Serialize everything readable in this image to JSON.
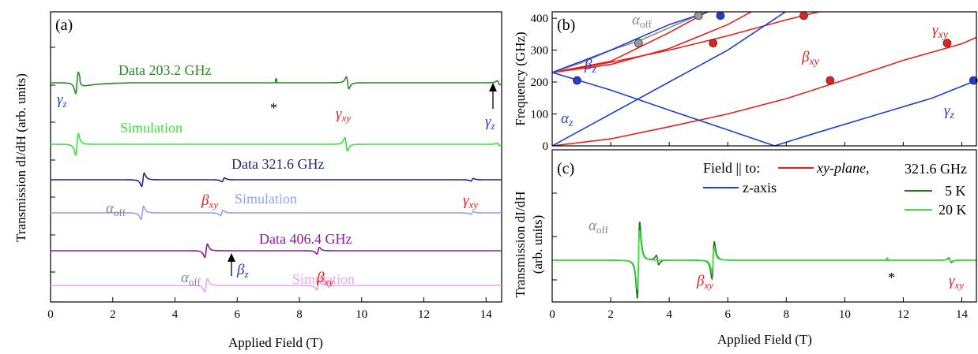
{
  "chart_data": [
    {
      "type": "line",
      "panel": "(a)",
      "xlabel": "Applied Field (T)",
      "ylabel": "Transmission dI/dH (arb. units)",
      "xlim": [
        0,
        14.5
      ],
      "xticks": [
        0,
        2,
        4,
        6,
        8,
        10,
        12,
        14
      ],
      "series": [
        {
          "name": "Data 203.2 GHz",
          "color": "#2a8a2a",
          "offset": 0,
          "features": [
            {
              "x": 0.85,
              "amp": 16,
              "kind": "up"
            },
            {
              "x": 7.25,
              "amp": 5,
              "kind": "spike"
            },
            {
              "x": 9.55,
              "amp": 9,
              "kind": "down"
            },
            {
              "x": 14.4,
              "amp": 3,
              "kind": "down"
            }
          ]
        },
        {
          "name": "Simulation",
          "color": "#3de03d",
          "offset": 1,
          "features": [
            {
              "x": 0.85,
              "amp": 16,
              "kind": "up"
            },
            {
              "x": 9.5,
              "amp": 10,
              "kind": "down"
            },
            {
              "x": 14.4,
              "amp": 2,
              "kind": "down"
            }
          ]
        },
        {
          "name": "Data 321.6 GHz",
          "color": "#1f2a7a",
          "offset": 2,
          "features": [
            {
              "x": 2.97,
              "amp": 10,
              "kind": "up"
            },
            {
              "x": 5.55,
              "amp": 3,
              "kind": "up"
            },
            {
              "x": 13.55,
              "amp": 2,
              "kind": "up"
            }
          ]
        },
        {
          "name": "Simulation",
          "color": "#8fa3ee",
          "offset": 3,
          "features": [
            {
              "x": 2.95,
              "amp": 10,
              "kind": "up"
            },
            {
              "x": 5.5,
              "amp": 4,
              "kind": "up"
            },
            {
              "x": 13.55,
              "amp": 2,
              "kind": "up"
            }
          ]
        },
        {
          "name": "Data 406.4 GHz",
          "color": "#8a1a9a",
          "offset": 4,
          "features": [
            {
              "x": 5.0,
              "amp": 10,
              "kind": "up"
            },
            {
              "x": 8.6,
              "amp": 5,
              "kind": "up"
            }
          ]
        },
        {
          "name": "Simulation",
          "color": "#e8a6ee",
          "offset": 5,
          "features": [
            {
              "x": 5.0,
              "amp": 10,
              "kind": "up"
            },
            {
              "x": 8.6,
              "amp": 7,
              "kind": "up"
            }
          ]
        }
      ],
      "annotations": [
        {
          "text": "*"
        },
        {
          "sym": "γ",
          "sub": "z"
        },
        {
          "sym": "γ",
          "sub": "xy"
        },
        {
          "sym": "γ",
          "sub": "z"
        },
        {
          "sym": "α",
          "sub": "off"
        },
        {
          "sym": "β",
          "sub": "xy"
        },
        {
          "sym": "γ",
          "sub": "xy"
        },
        {
          "sym": "α",
          "sub": "off"
        },
        {
          "sym": "β",
          "sub": "z"
        },
        {
          "sym": "β",
          "sub": "xy"
        }
      ]
    },
    {
      "type": "line",
      "panel": "(b)",
      "xlabel": "",
      "ylabel": "Frequency (GHz)",
      "xlim": [
        0,
        14.5
      ],
      "ylim": [
        0,
        420
      ],
      "yticks": [
        0,
        100,
        200,
        300,
        400
      ],
      "legend": {
        "title": "Field || to:",
        "entries": [
          {
            "label": "xy-plane,",
            "color": "#e8201c"
          },
          {
            "label": "z-axis",
            "color": "#1f3fd0"
          }
        ]
      },
      "series": [
        {
          "branch": "red-main",
          "color": "#e8201c",
          "x": [
            0,
            2,
            4,
            6,
            8,
            10,
            12,
            14,
            14.5
          ],
          "y": [
            0,
            22,
            60,
            100,
            148,
            207,
            268,
            320,
            340
          ]
        },
        {
          "branch": "red-upper-1",
          "color": "#e8201c",
          "x": [
            0,
            2,
            4,
            6,
            8,
            10
          ],
          "y": [
            230,
            262,
            300,
            345,
            395,
            440
          ]
        },
        {
          "branch": "red-upper-2",
          "color": "#e8201c",
          "x": [
            0,
            2,
            4,
            6,
            7
          ],
          "y": [
            230,
            255,
            305,
            380,
            430
          ]
        },
        {
          "branch": "red-upper-3",
          "color": "#e8201c",
          "x": [
            0,
            2,
            4,
            5.5
          ],
          "y": [
            230,
            265,
            355,
            430
          ]
        },
        {
          "branch": "gray-alpha-off",
          "color": "#888888",
          "x": [
            0,
            1,
            2,
            3,
            4,
            5,
            6
          ],
          "y": [
            230,
            260,
            300,
            330,
            370,
            410,
            440
          ]
        },
        {
          "branch": "blue-up-1",
          "color": "#1f3fd0",
          "x": [
            0,
            2,
            4,
            6
          ],
          "y": [
            230,
            300,
            380,
            440
          ]
        },
        {
          "branch": "blue-up-2",
          "color": "#1f3fd0",
          "x": [
            0,
            2,
            4,
            6,
            8.3
          ],
          "y": [
            0,
            100,
            200,
            300,
            440
          ]
        },
        {
          "branch": "blue-down",
          "color": "#1f3fd0",
          "x": [
            0,
            2,
            4,
            6,
            7.6
          ],
          "y": [
            230,
            175,
            112,
            50,
            0
          ]
        },
        {
          "branch": "blue-V-right",
          "color": "#1f3fd0",
          "x": [
            7.6,
            9,
            11,
            13,
            14.5
          ],
          "y": [
            0,
            40,
            95,
            150,
            205
          ]
        }
      ],
      "points": [
        {
          "x": 0.85,
          "y": 205,
          "color": "#1f3fd0"
        },
        {
          "x": 5.75,
          "y": 408,
          "color": "#1f3fd0"
        },
        {
          "x": 14.4,
          "y": 205,
          "color": "#1f3fd0"
        },
        {
          "x": 2.95,
          "y": 322,
          "color": "#999999"
        },
        {
          "x": 5.0,
          "y": 408,
          "color": "#999999"
        },
        {
          "x": 5.5,
          "y": 322,
          "color": "#e8201c"
        },
        {
          "x": 8.6,
          "y": 408,
          "color": "#e8201c"
        },
        {
          "x": 9.5,
          "y": 205,
          "color": "#e8201c"
        },
        {
          "x": 13.5,
          "y": 322,
          "color": "#e8201c"
        }
      ],
      "annotations": [
        {
          "sym": "α",
          "sub": "off"
        },
        {
          "sym": "β",
          "sub": "z"
        },
        {
          "sym": "β",
          "sub": "xy"
        },
        {
          "sym": "γ",
          "sub": "xy"
        },
        {
          "sym": "α",
          "sub": "z"
        },
        {
          "sym": "γ",
          "sub": "z"
        }
      ]
    },
    {
      "type": "line",
      "panel": "(c)",
      "xlabel": "Applied Field (T)",
      "ylabel_line1": "Transmission dI/dH",
      "ylabel_line2": "(arb. units)",
      "xlim": [
        0,
        14.5
      ],
      "xticks": [
        0,
        2,
        4,
        6,
        8,
        10,
        12,
        14
      ],
      "legend": {
        "title": "321.6 GHz",
        "entries": [
          {
            "label": "5 K",
            "color": "#1f7a1f"
          },
          {
            "label": "20 K",
            "color": "#3de03d"
          }
        ]
      },
      "series": [
        {
          "name": "5 K",
          "color": "#1f7a1f",
          "features": [
            {
              "x": 2.95,
              "amp": 105,
              "kind": "up"
            },
            {
              "x": 3.6,
              "amp": 10,
              "kind": "down"
            },
            {
              "x": 5.5,
              "amp": 40,
              "kind": "up"
            },
            {
              "x": 13.6,
              "amp": 5,
              "kind": "down"
            }
          ]
        },
        {
          "name": "20 K",
          "color": "#3de03d",
          "features": [
            {
              "x": 2.95,
              "amp": 80,
              "kind": "up"
            },
            {
              "x": 5.5,
              "amp": 25,
              "kind": "up"
            },
            {
              "x": 11.45,
              "amp": 4,
              "kind": "spike"
            },
            {
              "x": 13.6,
              "amp": 3,
              "kind": "down"
            }
          ]
        }
      ],
      "annotations": [
        {
          "sym": "α",
          "sub": "off"
        },
        {
          "sym": "β",
          "sub": "xy"
        },
        {
          "text": "*"
        },
        {
          "sym": "γ",
          "sub": "xy"
        }
      ]
    }
  ]
}
